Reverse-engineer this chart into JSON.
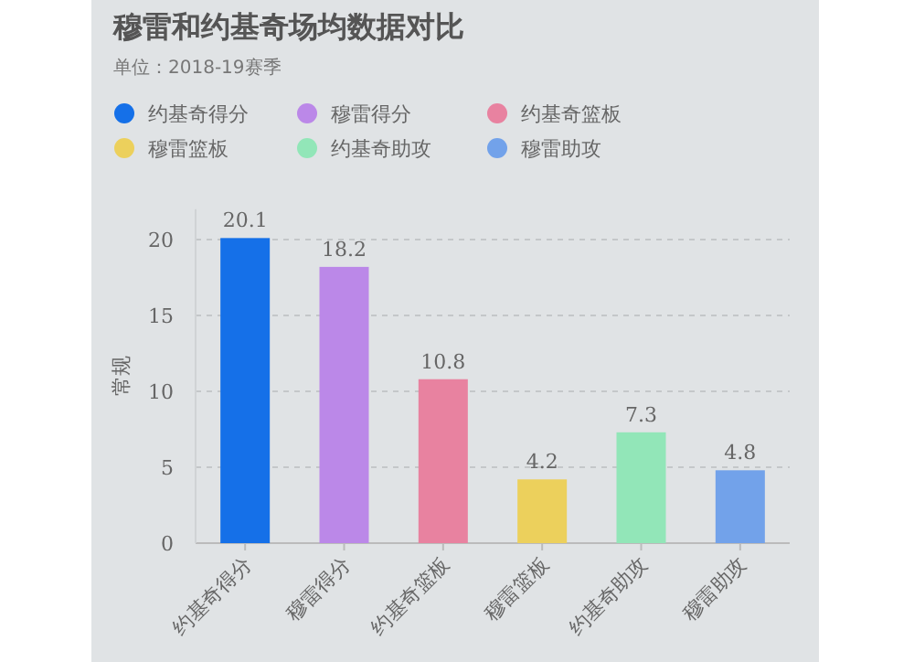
{
  "chart_data": {
    "type": "bar",
    "title": "穆雷和约基奇场均数据对比",
    "subtitle": "单位：2018-19赛季",
    "ylabel": "常规",
    "categories": [
      "约基奇得分",
      "穆雷得分",
      "约基奇篮板",
      "穆雷篮板",
      "约基奇助攻",
      "穆雷助攻"
    ],
    "series": [
      {
        "name": "约基奇得分",
        "color": "#1570e8",
        "values": [
          20.1,
          null,
          null,
          null,
          null,
          null
        ]
      },
      {
        "name": "穆雷得分",
        "color": "#bb88e8",
        "values": [
          null,
          18.2,
          null,
          null,
          null,
          null
        ]
      },
      {
        "name": "约基奇篮板",
        "color": "#e882a0",
        "values": [
          null,
          null,
          10.8,
          null,
          null,
          null
        ]
      },
      {
        "name": "穆雷篮板",
        "color": "#ecd05c",
        "values": [
          null,
          null,
          null,
          4.2,
          null,
          null
        ]
      },
      {
        "name": "约基奇助攻",
        "color": "#92e6b8",
        "values": [
          null,
          null,
          null,
          null,
          7.3,
          null
        ]
      },
      {
        "name": "穆雷助攻",
        "color": "#72a2ea",
        "values": [
          null,
          null,
          null,
          null,
          null,
          4.8
        ]
      }
    ],
    "ylim": [
      0,
      22
    ],
    "yticks": [
      0,
      5,
      10,
      15,
      20
    ],
    "grid": "y",
    "legend": "top left",
    "data_labels": true
  }
}
